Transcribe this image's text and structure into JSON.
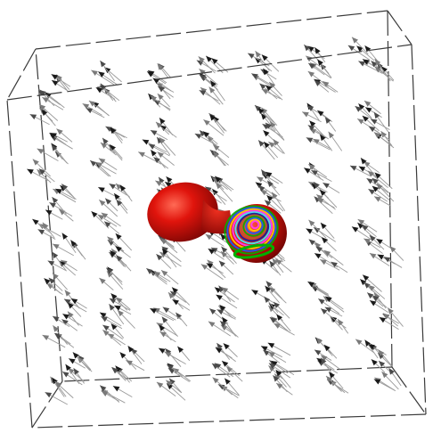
{
  "scene": {
    "kind": "3d-vector-field-visualization",
    "background_color": "#ffffff",
    "bounding_box": {
      "edge_color": "#3a3a3a",
      "style": "dashed-wireframe"
    },
    "vector_field": {
      "glyph": "arrow",
      "shaft_color": "#9a9a9a",
      "head_colors": [
        "#1a1a1a",
        "#4a4a4a",
        "#7a7a7a"
      ],
      "layers": 3,
      "rows_per_layer": 6,
      "cols_per_layer": 7,
      "arrows_per_cluster": 4,
      "orientation": "diagonal-up-left"
    },
    "isosurface": {
      "shape": "dumbbell",
      "main_color": "#e0140c",
      "shadow_color": "#7a0604",
      "contour_colors": [
        "#00b000",
        "#1060ff",
        "#ffd000",
        "#ff40ff",
        "#40f0ff",
        "#1020a0",
        "#b06030"
      ]
    }
  }
}
